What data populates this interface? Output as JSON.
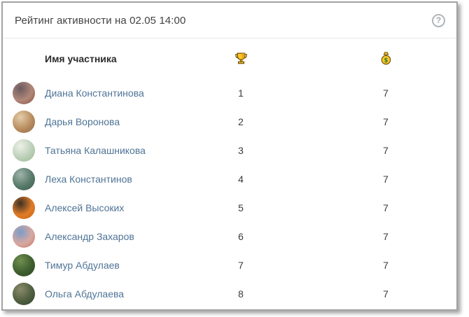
{
  "header": {
    "title": "Рейтинг активности на 02.05 14:00",
    "help_label": "?"
  },
  "table": {
    "name_header": "Имя участника",
    "rank_column_icon": "trophy-icon",
    "score_column_icon": "money-bag-icon",
    "rows": [
      {
        "name": "Диана Константинова",
        "rank": "1",
        "score": "7",
        "avatar_colors": [
          "#6b5a60",
          "#b08878",
          "#8a4a42"
        ]
      },
      {
        "name": "Дарья Воронова",
        "rank": "2",
        "score": "7",
        "avatar_colors": [
          "#e3cdaa",
          "#b98d5f",
          "#8a6a48"
        ]
      },
      {
        "name": "Татьяна Калашникова",
        "rank": "3",
        "score": "7",
        "avatar_colors": [
          "#eef0e8",
          "#bcd0b8",
          "#9ab896"
        ]
      },
      {
        "name": "Леха Константинов",
        "rank": "4",
        "score": "7",
        "avatar_colors": [
          "#9fb4a8",
          "#577a6a",
          "#3f5a50"
        ]
      },
      {
        "name": "Алексей Высоких",
        "rank": "5",
        "score": "7",
        "avatar_colors": [
          "#3a3026",
          "#e07c28",
          "#c96418"
        ]
      },
      {
        "name": "Александр Захаров",
        "rank": "6",
        "score": "7",
        "avatar_colors": [
          "#7a9cc8",
          "#d8a8a0",
          "#c27868"
        ]
      },
      {
        "name": "Тимур Абдулаев",
        "rank": "7",
        "score": "7",
        "avatar_colors": [
          "#6f8f4f",
          "#3f5f2f",
          "#2a4522"
        ]
      },
      {
        "name": "Ольга Абдулаева",
        "rank": "8",
        "score": "7",
        "avatar_colors": [
          "#8a8a6a",
          "#4f5f3f",
          "#33432d"
        ]
      }
    ]
  },
  "colors": {
    "link_blue": "#4f7496",
    "separator": "#e7e8ec",
    "border_gray": "#a3a3a3",
    "trophy_gold": "#ffc928",
    "icon_outline": "#6d4c00",
    "dollar_green": "#2e7d32"
  }
}
